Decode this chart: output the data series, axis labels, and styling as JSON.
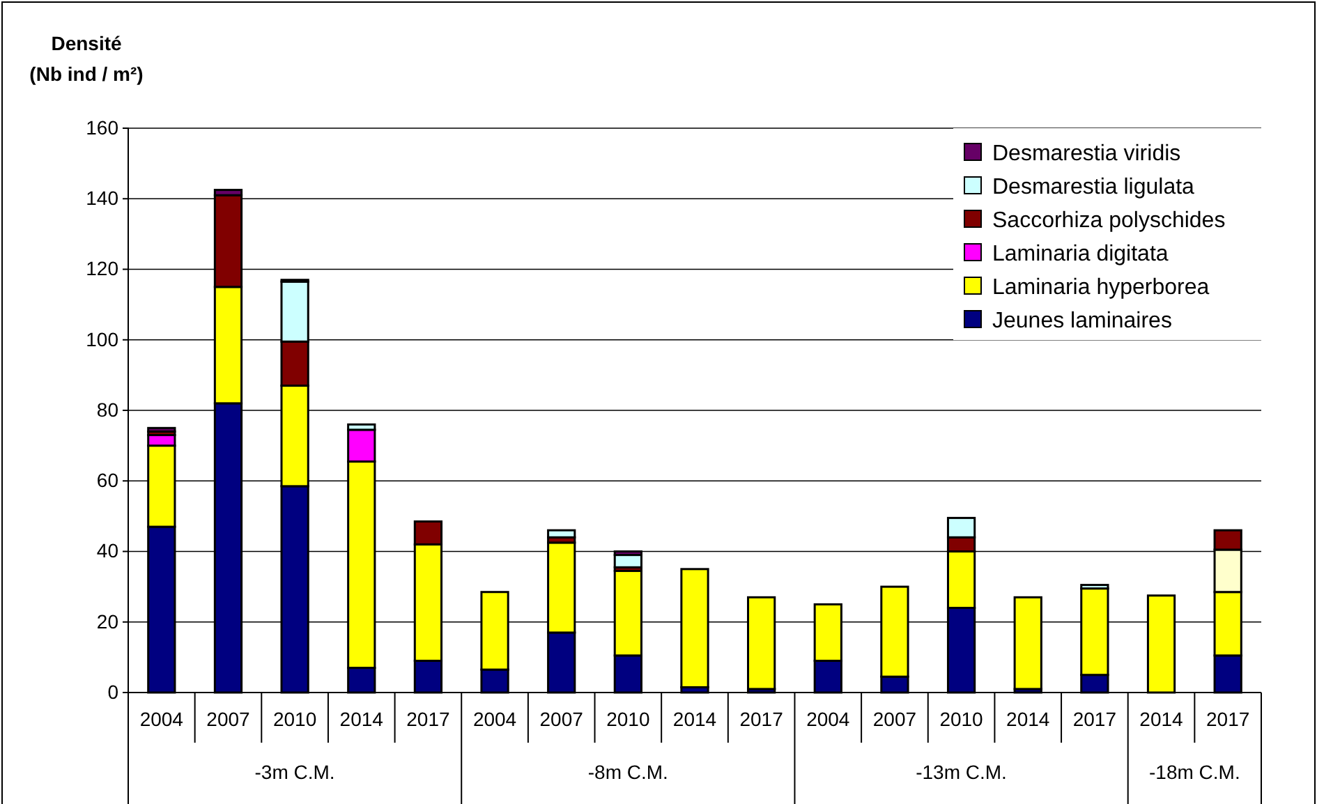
{
  "chart_data": {
    "type": "bar",
    "stacked": true,
    "ylabel": "Densité\n(Nb ind / m²)",
    "categories": [
      "2004",
      "2007",
      "2010",
      "2014",
      "2017",
      "2004",
      "2007",
      "2010",
      "2014",
      "2017",
      "2004",
      "2007",
      "2010",
      "2014",
      "2017",
      "2014",
      "2017"
    ],
    "annotations": [
      "-3m C.M.",
      "-8m C.M.",
      "-13m C.M.",
      "-18m C.M."
    ],
    "series": [
      {
        "name": "Jeunes laminaires",
        "color": "#000080",
        "values": [
          47,
          82,
          58.5,
          7,
          9,
          6.5,
          17,
          10.5,
          1.5,
          1,
          9,
          4.5,
          24,
          1,
          5,
          0,
          10.5
        ]
      },
      {
        "name": "Laminaria hyperborea",
        "color": "#ffff00",
        "values": [
          23,
          33,
          28.5,
          58.5,
          33,
          22,
          25.5,
          24,
          33.5,
          26,
          16,
          25.5,
          16,
          26,
          24.5,
          27.5,
          18
        ]
      },
      {
        "name": "Laminaria digitata",
        "color": "#ff00ff",
        "values": [
          3,
          0,
          0,
          9,
          0,
          0,
          0,
          0,
          0,
          0,
          0,
          0,
          0,
          0,
          0,
          0,
          0
        ]
      },
      {
        "color": "#ffffcc",
        "values": [
          0,
          0,
          0,
          0,
          0,
          0,
          0,
          0,
          0,
          0,
          0,
          0,
          0,
          0,
          0,
          0,
          12
        ]
      },
      {
        "name": "Saccorhiza polyschides",
        "color": "#800000",
        "values": [
          1,
          26,
          12.5,
          0,
          6.5,
          0,
          1.5,
          1,
          0,
          0,
          0,
          0,
          4,
          0,
          0,
          0,
          5.5
        ]
      },
      {
        "name": "Desmarestia ligulata",
        "color": "#ccffff",
        "values": [
          0,
          0,
          17,
          1.5,
          0,
          0,
          2,
          3.5,
          0,
          0,
          0,
          0,
          5.5,
          0,
          1,
          0,
          0
        ]
      },
      {
        "name": "Desmarestia viridis",
        "color": "#660066",
        "values": [
          1,
          1.5,
          0.5,
          0,
          0,
          0,
          0,
          1,
          0,
          0,
          0,
          0,
          0,
          0,
          0,
          0,
          0
        ]
      }
    ],
    "ylim": [
      0,
      160
    ],
    "yticks": [
      0,
      20,
      40,
      60,
      80,
      100,
      120,
      140,
      160
    ],
    "grid": "y",
    "legend": "top right"
  }
}
